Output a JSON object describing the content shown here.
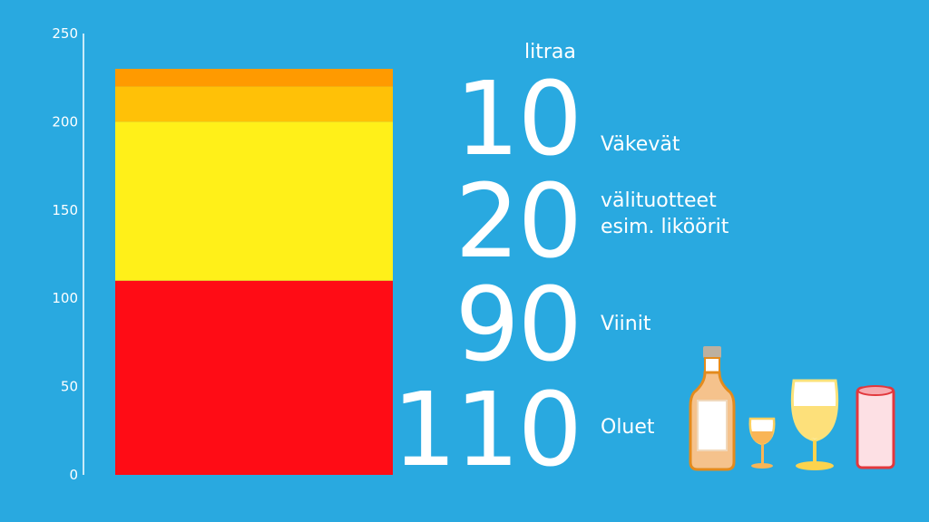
{
  "chart_data": {
    "type": "bar",
    "stacked": true,
    "categories": [
      ""
    ],
    "series": [
      {
        "name": "Oluet",
        "values": [
          110
        ],
        "color": "#ff0c15"
      },
      {
        "name": "Viinit",
        "values": [
          90
        ],
        "color": "#fff019"
      },
      {
        "name": "välituotteet esim. liköörit",
        "values": [
          20
        ],
        "color": "#ffc107"
      },
      {
        "name": "Väkevät",
        "values": [
          10
        ],
        "color": "#ff9a00"
      }
    ],
    "ylim": [
      0,
      250
    ],
    "yticks": [
      "0",
      "50",
      "100",
      "150",
      "200",
      "250"
    ],
    "grid": false,
    "unit_label": "litraa",
    "annotations": [
      {
        "value": "10",
        "label_lines": [
          "Väkevät"
        ]
      },
      {
        "value": "20",
        "label_lines": [
          "välituotteet",
          "esim. liköörit"
        ]
      },
      {
        "value": "90",
        "label_lines": [
          "Viinit"
        ]
      },
      {
        "value": "110",
        "label_lines": [
          "Oluet"
        ]
      }
    ]
  },
  "colors": {
    "background": "#29a9e0",
    "text": "#ffffff"
  },
  "icons": [
    "liquor-bottle-icon",
    "small-glass-icon",
    "wine-glass-icon",
    "beer-can-icon"
  ]
}
